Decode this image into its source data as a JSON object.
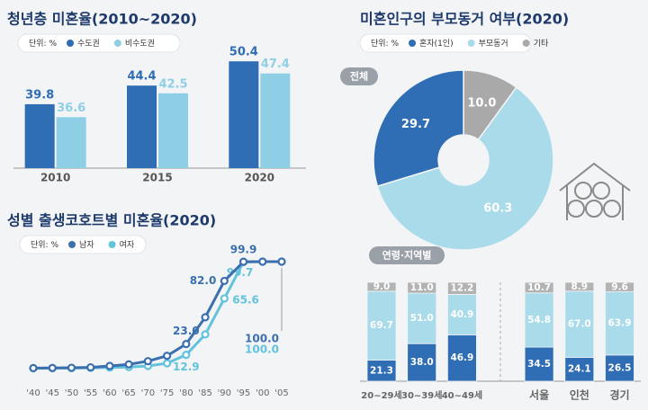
{
  "chart_data": [
    {
      "type": "bar",
      "title": "청년층 미혼율(2010~2020)",
      "unit_label": "단위: %",
      "categories": [
        "2010",
        "2015",
        "2020"
      ],
      "series": [
        {
          "name": "수도권",
          "color": "#2f6db5",
          "values": [
            39.8,
            44.4,
            50.4
          ]
        },
        {
          "name": "비수도권",
          "color": "#8fcfe6",
          "values": [
            36.6,
            42.5,
            47.4
          ]
        }
      ],
      "ylim": [
        24,
        52
      ]
    },
    {
      "type": "line",
      "title": "성별 출생코호트별 미혼율(2020)",
      "unit_label": "단위: %",
      "categories": [
        "'40",
        "'45",
        "'50",
        "'55",
        "'60",
        "'65",
        "'70",
        "'75",
        "'80",
        "'85",
        "'90",
        "'95",
        "'00",
        "'05"
      ],
      "series": [
        {
          "name": "남자",
          "color": "#3b6fae",
          "values": [
            0.5,
            0.6,
            0.8,
            1.2,
            2.5,
            4,
            7,
            12,
            23.0,
            48,
            82.0,
            99.9,
            100,
            100.0
          ],
          "value_labels": [
            null,
            null,
            null,
            null,
            null,
            null,
            null,
            null,
            "23.0",
            null,
            "82.0",
            "99.9",
            null,
            "100.0"
          ]
        },
        {
          "name": "여자",
          "color": "#63c3dd",
          "values": [
            0.3,
            0.4,
            0.5,
            0.7,
            1,
            1.5,
            2.5,
            5,
            12.9,
            32,
            65.6,
            99.7,
            100,
            100.0
          ],
          "value_labels": [
            null,
            null,
            null,
            null,
            null,
            null,
            null,
            null,
            "12.9",
            null,
            "65.6",
            "99.7",
            null,
            "100.0"
          ]
        }
      ],
      "ylim": [
        0,
        100
      ]
    },
    {
      "type": "pie",
      "title": "미혼인구의 부모동거 여부(2020)",
      "unit_label": "단위: %",
      "label": "전체",
      "categories": [
        "혼자(1인)",
        "부모동거",
        "기타"
      ],
      "values": [
        29.7,
        60.3,
        10.0
      ],
      "value_labels": [
        "29.7",
        "60.3",
        "10.0"
      ],
      "colors": [
        "#2f6db5",
        "#a9dbeb",
        "#a9a9a9"
      ]
    },
    {
      "type": "stacked_bar",
      "title": "연령·지역별",
      "categories": [
        "20~29세",
        "30~39세",
        "40~49세",
        "서울",
        "인천",
        "경기"
      ],
      "series": [
        {
          "color": "#2f6db5",
          "values": [
            21.3,
            38.0,
            46.9,
            34.5,
            24.1,
            26.5
          ],
          "value_labels": [
            "21.3",
            "38.0",
            "46.9",
            "34.5",
            "24.1",
            "26.5"
          ]
        },
        {
          "color": "#a9dbeb",
          "values": [
            69.7,
            51.0,
            40.9,
            54.8,
            67.0,
            63.9
          ],
          "value_labels": [
            "69.7",
            "51.0",
            "40.9",
            "54.8",
            "67.0",
            "63.9"
          ]
        },
        {
          "color": "#b3b3b3",
          "values": [
            9.0,
            11.0,
            12.2,
            10.7,
            8.9,
            9.6
          ],
          "value_labels": [
            "9.0",
            "11.0",
            "12.2",
            "10.7",
            "8.9",
            "9.6"
          ]
        }
      ],
      "ylim": [
        0,
        100
      ]
    }
  ]
}
